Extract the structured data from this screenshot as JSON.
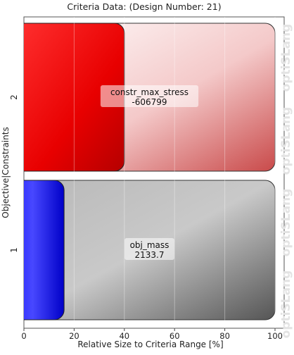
{
  "chart_data": {
    "type": "bar",
    "orientation": "horizontal",
    "title": "Criteria Data: (Design Number: 21)",
    "xlabel": "Relative Size to Criteria Range [%]",
    "ylabel": "Objective|Constraints",
    "xlim": [
      0,
      100
    ],
    "xticks": [
      0,
      20,
      40,
      60,
      80,
      100
    ],
    "grid": true,
    "categories": [
      "2",
      "1"
    ],
    "bars": [
      {
        "category": "2",
        "name": "constr_max_stress",
        "value_label": "-606799",
        "relative_size_percent": 40,
        "fill_color": "#ff0000",
        "background_color": "#e8a0a0"
      },
      {
        "category": "1",
        "name": "obj_mass",
        "value_label": "2133.7",
        "relative_size_percent": 16,
        "fill_color": "#1414ff",
        "background_color": "#9a9a9a"
      }
    ],
    "watermark": "optiSLang"
  }
}
